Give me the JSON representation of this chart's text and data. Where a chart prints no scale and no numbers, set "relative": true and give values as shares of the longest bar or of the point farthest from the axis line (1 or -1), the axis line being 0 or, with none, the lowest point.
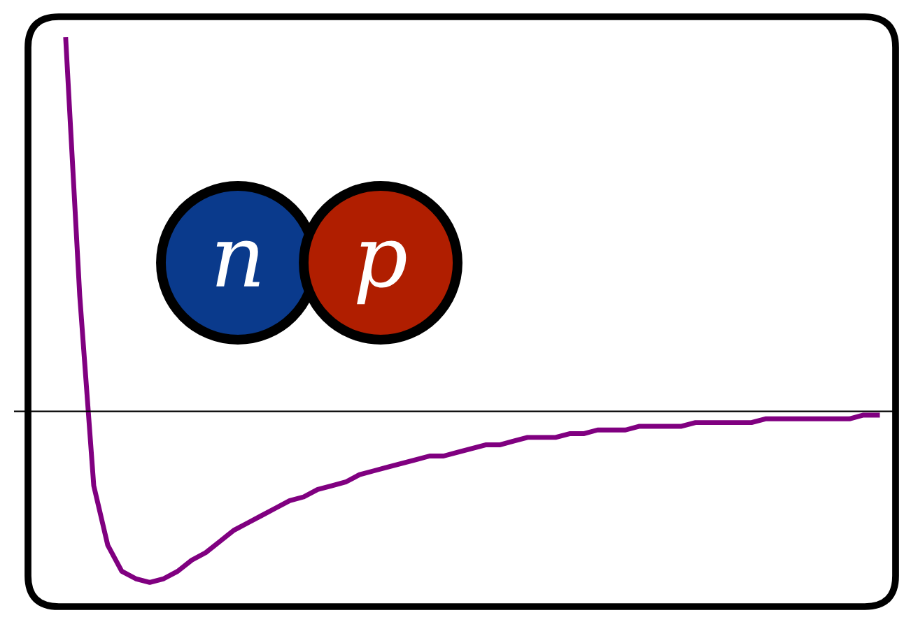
{
  "chart_data": {
    "type": "line",
    "relative": true,
    "color": "#800080",
    "categories": [
      null,
      null,
      null,
      null,
      null,
      null,
      null,
      null,
      null,
      null,
      null,
      null,
      null,
      null,
      null,
      null,
      null,
      null,
      null,
      null,
      null,
      null,
      null,
      null,
      null,
      null,
      null,
      null,
      null,
      null,
      null,
      null,
      null,
      null,
      null,
      null,
      null,
      null,
      null,
      null,
      null,
      null,
      null,
      null,
      null,
      null,
      null,
      null,
      null,
      null,
      null,
      null,
      null,
      null,
      null,
      null,
      null,
      null,
      null
    ],
    "values": [
      1.0,
      0.31,
      -0.2,
      -0.36,
      -0.43,
      -0.45,
      -0.46,
      -0.45,
      -0.43,
      -0.4,
      -0.38,
      -0.35,
      -0.32,
      -0.3,
      -0.28,
      -0.26,
      -0.24,
      -0.23,
      -0.21,
      -0.2,
      -0.19,
      -0.17,
      -0.16,
      -0.15,
      -0.14,
      -0.13,
      -0.12,
      -0.12,
      -0.11,
      -0.1,
      -0.09,
      -0.09,
      -0.08,
      -0.07,
      -0.07,
      -0.07,
      -0.06,
      -0.06,
      -0.05,
      -0.05,
      -0.05,
      -0.04,
      -0.04,
      -0.04,
      -0.04,
      -0.03,
      -0.03,
      -0.03,
      -0.03,
      -0.03,
      -0.02,
      -0.02,
      -0.02,
      -0.02,
      -0.02,
      -0.02,
      -0.02,
      -0.01,
      -0.01
    ],
    "annotations": [
      "n",
      "p"
    ],
    "grid": false,
    "legend": false,
    "marker": "none",
    "line_style": "solid"
  }
}
